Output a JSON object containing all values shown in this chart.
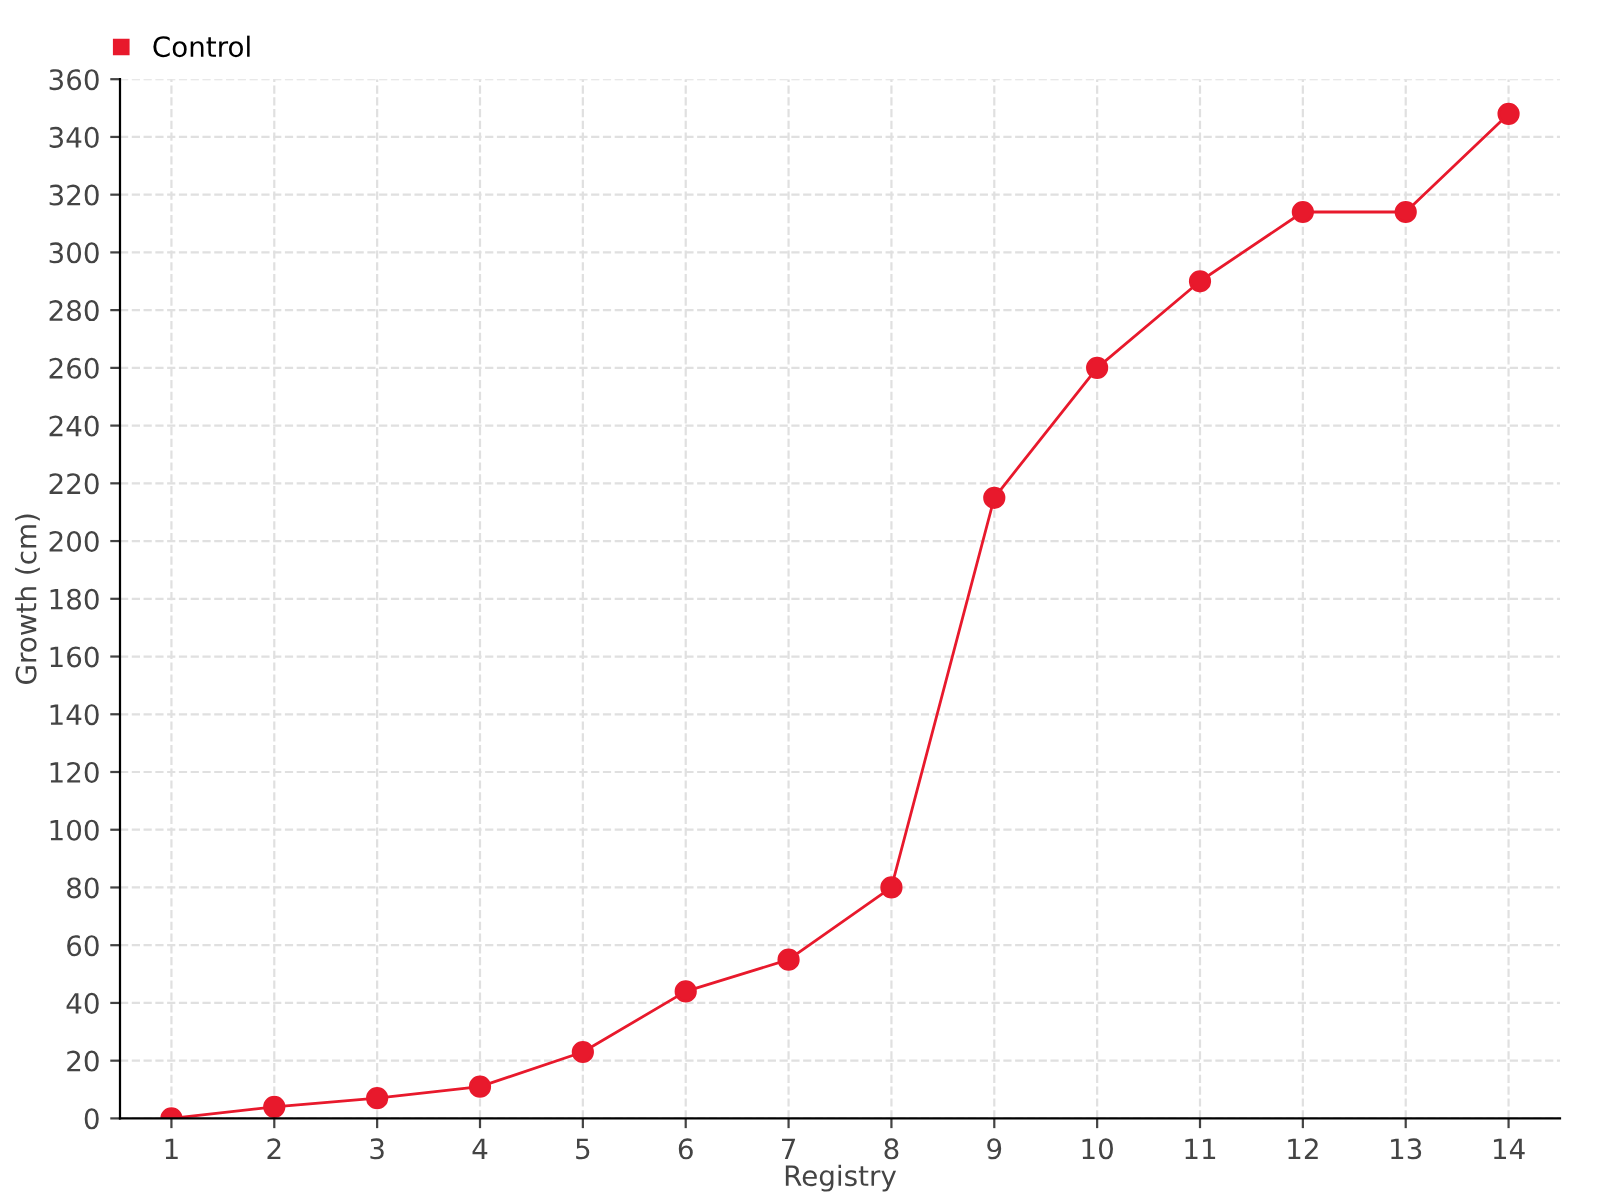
{
  "chart_data": {
    "type": "line",
    "xlabel": "Registry",
    "ylabel": "Growth (cm)",
    "categories": [
      "1",
      "2",
      "3",
      "4",
      "5",
      "6",
      "7",
      "8",
      "9",
      "10",
      "11",
      "12",
      "13",
      "14"
    ],
    "series": [
      {
        "name": "Control",
        "color": "#e8192c",
        "values": [
          0,
          4,
          7,
          11,
          23,
          44,
          55,
          80,
          215,
          260,
          290,
          314,
          314,
          348
        ]
      }
    ],
    "ylim": [
      0,
      360
    ],
    "yticks": [
      0,
      20,
      40,
      60,
      80,
      100,
      120,
      140,
      160,
      180,
      200,
      220,
      240,
      260,
      280,
      300,
      320,
      340,
      360
    ],
    "grid": true,
    "legend": "top left",
    "marker": "circle",
    "line_style": "solid"
  }
}
